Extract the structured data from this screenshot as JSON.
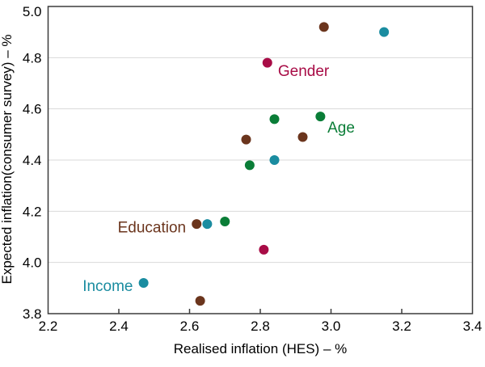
{
  "chart_data": {
    "type": "scatter",
    "title": "",
    "xlabel": "Realised inflation (HES) – %",
    "ylabel": "Expected inflation(consumer survey) – %",
    "xlim": [
      2.2,
      3.4
    ],
    "ylim": [
      3.8,
      5.0
    ],
    "x_ticks": [
      "2.2",
      "2.4",
      "2.6",
      "2.8",
      "3.0",
      "3.2",
      "3.4"
    ],
    "y_ticks": [
      "5.0",
      "4.8",
      "4.6",
      "4.4",
      "4.2",
      "4.0",
      "3.8"
    ],
    "grid": "horizontal-only",
    "legend": "inline-colored-labels",
    "series": [
      {
        "name": "Income",
        "color": "#1a8ca0",
        "points": [
          [
            2.47,
            3.92
          ],
          [
            2.65,
            4.15
          ],
          [
            2.84,
            4.4
          ],
          [
            3.15,
            4.9
          ]
        ],
        "label_anchor": {
          "x": 2.44,
          "y": 3.91,
          "align": "end"
        }
      },
      {
        "name": "Education",
        "color": "#6b351d",
        "points": [
          [
            2.62,
            4.15
          ],
          [
            2.63,
            3.85
          ],
          [
            2.76,
            4.48
          ],
          [
            2.92,
            4.49
          ],
          [
            2.98,
            4.92
          ]
        ],
        "label_anchor": {
          "x": 2.59,
          "y": 4.14,
          "align": "end"
        }
      },
      {
        "name": "Age",
        "color": "#0a7d37",
        "points": [
          [
            2.7,
            4.16
          ],
          [
            2.77,
            4.38
          ],
          [
            2.84,
            4.56
          ],
          [
            2.97,
            4.57
          ]
        ],
        "label_anchor": {
          "x": 2.99,
          "y": 4.53,
          "align": "start"
        }
      },
      {
        "name": "Gender",
        "color": "#a80c46",
        "points": [
          [
            2.81,
            4.05
          ],
          [
            2.82,
            4.78
          ]
        ],
        "label_anchor": {
          "x": 2.85,
          "y": 4.75,
          "align": "start"
        }
      }
    ]
  },
  "colors": {
    "background": "#ffffff",
    "gridline": "#d9d9d9",
    "axis_frame": "#3b3b3b",
    "text": "#000000"
  }
}
